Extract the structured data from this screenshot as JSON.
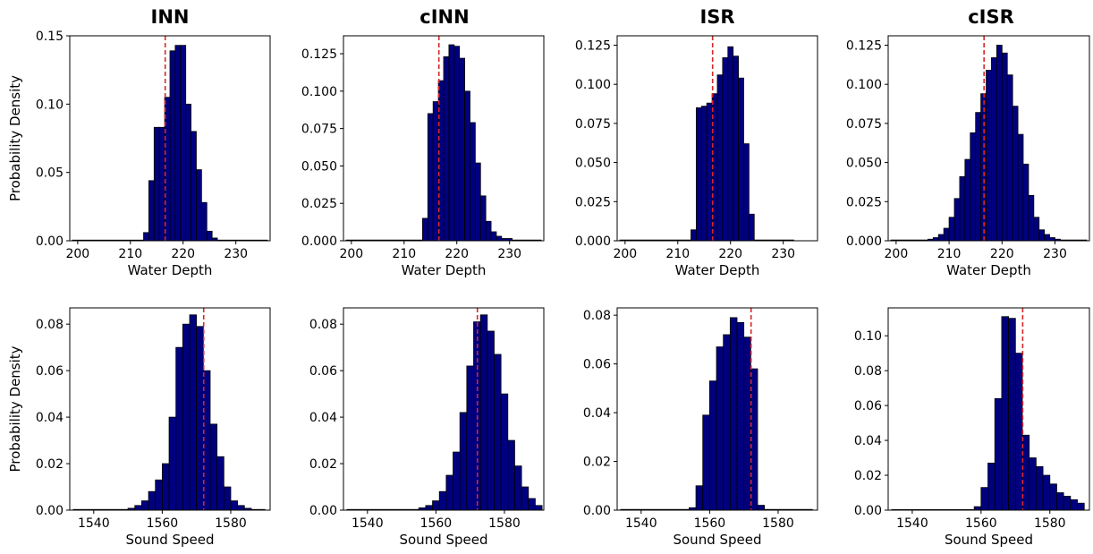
{
  "column_titles": [
    "INN",
    "cINN",
    "ISR",
    "cISR"
  ],
  "styles": {
    "bar_fill": "#00007f",
    "bar_edge": "#000000",
    "reference_line": "#d62728"
  },
  "chart_data": [
    {
      "type": "bar",
      "row": 0,
      "col": 0,
      "xlabel": "Water Depth",
      "ylabel": "Probability Density",
      "xlim": [
        198.5,
        236.5
      ],
      "ylim": [
        0,
        0.15
      ],
      "xticks": [
        200,
        210,
        220,
        230
      ],
      "xtick_labels": [
        "200",
        "210",
        "220",
        "230"
      ],
      "yticks": [
        0,
        0.05,
        0.1,
        0.15
      ],
      "ytick_labels": [
        "0.00",
        "0.05",
        "0.10",
        "0.15"
      ],
      "reference_line": 216.6,
      "bins": [
        {
          "x0": 199.0,
          "x1": 212.5,
          "y": 0.0005
        },
        {
          "x0": 212.5,
          "x1": 213.5,
          "y": 0.006
        },
        {
          "x0": 213.5,
          "x1": 214.5,
          "y": 0.044
        },
        {
          "x0": 214.5,
          "x1": 215.5,
          "y": 0.083
        },
        {
          "x0": 215.5,
          "x1": 216.5,
          "y": 0.083
        },
        {
          "x0": 216.5,
          "x1": 217.5,
          "y": 0.105
        },
        {
          "x0": 217.5,
          "x1": 218.5,
          "y": 0.139
        },
        {
          "x0": 218.5,
          "x1": 219.5,
          "y": 0.143
        },
        {
          "x0": 219.5,
          "x1": 220.5,
          "y": 0.143
        },
        {
          "x0": 220.5,
          "x1": 221.5,
          "y": 0.1
        },
        {
          "x0": 221.5,
          "x1": 222.5,
          "y": 0.08
        },
        {
          "x0": 222.5,
          "x1": 223.5,
          "y": 0.052
        },
        {
          "x0": 223.5,
          "x1": 224.5,
          "y": 0.028
        },
        {
          "x0": 224.5,
          "x1": 225.5,
          "y": 0.007
        },
        {
          "x0": 225.5,
          "x1": 226.5,
          "y": 0.002
        },
        {
          "x0": 226.5,
          "x1": 236.0,
          "y": 0.0005
        }
      ]
    },
    {
      "type": "bar",
      "row": 0,
      "col": 1,
      "xlabel": "Water Depth",
      "ylabel": "",
      "xlim": [
        198.5,
        236.5
      ],
      "ylim": [
        0,
        0.137
      ],
      "xticks": [
        200,
        210,
        220,
        230
      ],
      "xtick_labels": [
        "200",
        "210",
        "220",
        "230"
      ],
      "yticks": [
        0,
        0.025,
        0.05,
        0.075,
        0.1,
        0.125
      ],
      "ytick_labels": [
        "0.000",
        "0.025",
        "0.050",
        "0.075",
        "0.100",
        "0.125"
      ],
      "reference_line": 216.6,
      "bins": [
        {
          "x0": 199.0,
          "x1": 213.5,
          "y": 0.0005
        },
        {
          "x0": 213.5,
          "x1": 214.5,
          "y": 0.015
        },
        {
          "x0": 214.5,
          "x1": 215.5,
          "y": 0.085
        },
        {
          "x0": 215.5,
          "x1": 216.5,
          "y": 0.093
        },
        {
          "x0": 216.5,
          "x1": 217.5,
          "y": 0.107
        },
        {
          "x0": 217.5,
          "x1": 218.5,
          "y": 0.123
        },
        {
          "x0": 218.5,
          "x1": 219.5,
          "y": 0.131
        },
        {
          "x0": 219.5,
          "x1": 220.5,
          "y": 0.13
        },
        {
          "x0": 220.5,
          "x1": 221.5,
          "y": 0.122
        },
        {
          "x0": 221.5,
          "x1": 222.5,
          "y": 0.1
        },
        {
          "x0": 222.5,
          "x1": 223.5,
          "y": 0.079
        },
        {
          "x0": 223.5,
          "x1": 224.5,
          "y": 0.052
        },
        {
          "x0": 224.5,
          "x1": 225.5,
          "y": 0.03
        },
        {
          "x0": 225.5,
          "x1": 226.5,
          "y": 0.013
        },
        {
          "x0": 226.5,
          "x1": 227.5,
          "y": 0.006
        },
        {
          "x0": 227.5,
          "x1": 228.5,
          "y": 0.003
        },
        {
          "x0": 228.5,
          "x1": 230.5,
          "y": 0.0015
        },
        {
          "x0": 230.5,
          "x1": 236.0,
          "y": 0.0005
        }
      ]
    },
    {
      "type": "bar",
      "row": 0,
      "col": 2,
      "xlabel": "Water Depth",
      "ylabel": "",
      "xlim": [
        198.5,
        236.5
      ],
      "ylim": [
        0,
        0.131
      ],
      "xticks": [
        200,
        210,
        220,
        230
      ],
      "xtick_labels": [
        "200",
        "210",
        "220",
        "230"
      ],
      "yticks": [
        0,
        0.025,
        0.05,
        0.075,
        0.1,
        0.125
      ],
      "ytick_labels": [
        "0.000",
        "0.025",
        "0.050",
        "0.075",
        "0.100",
        "0.125"
      ],
      "reference_line": 216.6,
      "bins": [
        {
          "x0": 199.0,
          "x1": 212.5,
          "y": 0.0005
        },
        {
          "x0": 212.5,
          "x1": 213.5,
          "y": 0.007
        },
        {
          "x0": 213.5,
          "x1": 214.5,
          "y": 0.085
        },
        {
          "x0": 214.5,
          "x1": 215.5,
          "y": 0.086
        },
        {
          "x0": 215.5,
          "x1": 216.5,
          "y": 0.088
        },
        {
          "x0": 216.5,
          "x1": 217.5,
          "y": 0.094
        },
        {
          "x0": 217.5,
          "x1": 218.5,
          "y": 0.106
        },
        {
          "x0": 218.5,
          "x1": 219.5,
          "y": 0.117
        },
        {
          "x0": 219.5,
          "x1": 220.5,
          "y": 0.124
        },
        {
          "x0": 220.5,
          "x1": 221.5,
          "y": 0.118
        },
        {
          "x0": 221.5,
          "x1": 222.5,
          "y": 0.104
        },
        {
          "x0": 222.5,
          "x1": 223.5,
          "y": 0.062
        },
        {
          "x0": 223.5,
          "x1": 224.5,
          "y": 0.017
        },
        {
          "x0": 224.5,
          "x1": 232.0,
          "y": 0.0005
        }
      ]
    },
    {
      "type": "bar",
      "row": 0,
      "col": 3,
      "xlabel": "Water Depth",
      "ylabel": "",
      "xlim": [
        198.5,
        236.5
      ],
      "ylim": [
        0,
        0.131
      ],
      "xticks": [
        200,
        210,
        220,
        230
      ],
      "xtick_labels": [
        "200",
        "210",
        "220",
        "230"
      ],
      "yticks": [
        0,
        0.025,
        0.05,
        0.075,
        0.1,
        0.125
      ],
      "ytick_labels": [
        "0.000",
        "0.025",
        "0.050",
        "0.075",
        "0.100",
        "0.125"
      ],
      "reference_line": 216.6,
      "bins": [
        {
          "x0": 199.0,
          "x1": 206.0,
          "y": 0.0005
        },
        {
          "x0": 206.0,
          "x1": 207.0,
          "y": 0.001
        },
        {
          "x0": 207.0,
          "x1": 208.0,
          "y": 0.002
        },
        {
          "x0": 208.0,
          "x1": 209.0,
          "y": 0.004
        },
        {
          "x0": 209.0,
          "x1": 210.0,
          "y": 0.008
        },
        {
          "x0": 210.0,
          "x1": 211.0,
          "y": 0.015
        },
        {
          "x0": 211.0,
          "x1": 212.0,
          "y": 0.027
        },
        {
          "x0": 212.0,
          "x1": 213.0,
          "y": 0.041
        },
        {
          "x0": 213.0,
          "x1": 214.0,
          "y": 0.052
        },
        {
          "x0": 214.0,
          "x1": 215.0,
          "y": 0.069
        },
        {
          "x0": 215.0,
          "x1": 216.0,
          "y": 0.082
        },
        {
          "x0": 216.0,
          "x1": 217.0,
          "y": 0.094
        },
        {
          "x0": 217.0,
          "x1": 218.0,
          "y": 0.109
        },
        {
          "x0": 218.0,
          "x1": 219.0,
          "y": 0.117
        },
        {
          "x0": 219.0,
          "x1": 220.0,
          "y": 0.125
        },
        {
          "x0": 220.0,
          "x1": 221.0,
          "y": 0.12
        },
        {
          "x0": 221.0,
          "x1": 222.0,
          "y": 0.106
        },
        {
          "x0": 222.0,
          "x1": 223.0,
          "y": 0.086
        },
        {
          "x0": 223.0,
          "x1": 224.0,
          "y": 0.068
        },
        {
          "x0": 224.0,
          "x1": 225.0,
          "y": 0.049
        },
        {
          "x0": 225.0,
          "x1": 226.0,
          "y": 0.029
        },
        {
          "x0": 226.0,
          "x1": 227.0,
          "y": 0.015
        },
        {
          "x0": 227.0,
          "x1": 228.0,
          "y": 0.007
        },
        {
          "x0": 228.0,
          "x1": 229.0,
          "y": 0.004
        },
        {
          "x0": 229.0,
          "x1": 230.0,
          "y": 0.002
        },
        {
          "x0": 230.0,
          "x1": 231.0,
          "y": 0.001
        },
        {
          "x0": 231.0,
          "x1": 236.0,
          "y": 0.0005
        }
      ]
    },
    {
      "type": "bar",
      "row": 1,
      "col": 0,
      "xlabel": "Sound Speed",
      "ylabel": "Probability Density",
      "xlim": [
        1533,
        1591.5
      ],
      "ylim": [
        0,
        0.087
      ],
      "xticks": [
        1540,
        1560,
        1580
      ],
      "xtick_labels": [
        "1540",
        "1560",
        "1580"
      ],
      "yticks": [
        0,
        0.02,
        0.04,
        0.06,
        0.08
      ],
      "ytick_labels": [
        "0.00",
        "0.02",
        "0.04",
        "0.06",
        "0.08"
      ],
      "reference_line": 1572.1,
      "bins": [
        {
          "x0": 1534,
          "x1": 1550,
          "y": 0.0003
        },
        {
          "x0": 1550,
          "x1": 1552,
          "y": 0.0008
        },
        {
          "x0": 1552,
          "x1": 1554,
          "y": 0.002
        },
        {
          "x0": 1554,
          "x1": 1556,
          "y": 0.004
        },
        {
          "x0": 1556,
          "x1": 1558,
          "y": 0.008
        },
        {
          "x0": 1558,
          "x1": 1560,
          "y": 0.013
        },
        {
          "x0": 1560,
          "x1": 1562,
          "y": 0.02
        },
        {
          "x0": 1562,
          "x1": 1564,
          "y": 0.04
        },
        {
          "x0": 1564,
          "x1": 1566,
          "y": 0.07
        },
        {
          "x0": 1566,
          "x1": 1568,
          "y": 0.08
        },
        {
          "x0": 1568,
          "x1": 1570,
          "y": 0.084
        },
        {
          "x0": 1570,
          "x1": 1572,
          "y": 0.079
        },
        {
          "x0": 1572,
          "x1": 1574,
          "y": 0.06
        },
        {
          "x0": 1574,
          "x1": 1576,
          "y": 0.037
        },
        {
          "x0": 1576,
          "x1": 1578,
          "y": 0.023
        },
        {
          "x0": 1578,
          "x1": 1580,
          "y": 0.01
        },
        {
          "x0": 1580,
          "x1": 1582,
          "y": 0.004
        },
        {
          "x0": 1582,
          "x1": 1584,
          "y": 0.002
        },
        {
          "x0": 1584,
          "x1": 1586,
          "y": 0.0008
        },
        {
          "x0": 1586,
          "x1": 1590,
          "y": 0.0003
        }
      ]
    },
    {
      "type": "bar",
      "row": 1,
      "col": 1,
      "xlabel": "Sound Speed",
      "ylabel": "",
      "xlim": [
        1533,
        1591.5
      ],
      "ylim": [
        0,
        0.087
      ],
      "xticks": [
        1540,
        1560,
        1580
      ],
      "xtick_labels": [
        "1540",
        "1560",
        "1580"
      ],
      "yticks": [
        0,
        0.02,
        0.04,
        0.06,
        0.08
      ],
      "ytick_labels": [
        "0.00",
        "0.02",
        "0.04",
        "0.06",
        "0.08"
      ],
      "reference_line": 1572.1,
      "bins": [
        {
          "x0": 1534,
          "x1": 1555,
          "y": 0.0003
        },
        {
          "x0": 1555,
          "x1": 1557,
          "y": 0.001
        },
        {
          "x0": 1557,
          "x1": 1559,
          "y": 0.002
        },
        {
          "x0": 1559,
          "x1": 1561,
          "y": 0.004
        },
        {
          "x0": 1561,
          "x1": 1563,
          "y": 0.008
        },
        {
          "x0": 1563,
          "x1": 1565,
          "y": 0.015
        },
        {
          "x0": 1565,
          "x1": 1567,
          "y": 0.025
        },
        {
          "x0": 1567,
          "x1": 1569,
          "y": 0.042
        },
        {
          "x0": 1569,
          "x1": 1571,
          "y": 0.062
        },
        {
          "x0": 1571,
          "x1": 1573,
          "y": 0.081
        },
        {
          "x0": 1573,
          "x1": 1575,
          "y": 0.084
        },
        {
          "x0": 1575,
          "x1": 1577,
          "y": 0.077
        },
        {
          "x0": 1577,
          "x1": 1579,
          "y": 0.067
        },
        {
          "x0": 1579,
          "x1": 1581,
          "y": 0.05
        },
        {
          "x0": 1581,
          "x1": 1583,
          "y": 0.03
        },
        {
          "x0": 1583,
          "x1": 1585,
          "y": 0.019
        },
        {
          "x0": 1585,
          "x1": 1587,
          "y": 0.01
        },
        {
          "x0": 1587,
          "x1": 1589,
          "y": 0.005
        },
        {
          "x0": 1589,
          "x1": 1591,
          "y": 0.002
        }
      ]
    },
    {
      "type": "bar",
      "row": 1,
      "col": 2,
      "xlabel": "Sound Speed",
      "ylabel": "",
      "xlim": [
        1533,
        1591.5
      ],
      "ylim": [
        0,
        0.083
      ],
      "xticks": [
        1540,
        1560,
        1580
      ],
      "xtick_labels": [
        "1540",
        "1560",
        "1580"
      ],
      "yticks": [
        0,
        0.02,
        0.04,
        0.06,
        0.08
      ],
      "ytick_labels": [
        "0.00",
        "0.02",
        "0.04",
        "0.06",
        "0.08"
      ],
      "reference_line": 1572.1,
      "bins": [
        {
          "x0": 1534,
          "x1": 1554,
          "y": 0.0003
        },
        {
          "x0": 1554,
          "x1": 1556,
          "y": 0.001
        },
        {
          "x0": 1556,
          "x1": 1558,
          "y": 0.01
        },
        {
          "x0": 1558,
          "x1": 1560,
          "y": 0.039
        },
        {
          "x0": 1560,
          "x1": 1562,
          "y": 0.053
        },
        {
          "x0": 1562,
          "x1": 1564,
          "y": 0.067
        },
        {
          "x0": 1564,
          "x1": 1566,
          "y": 0.072
        },
        {
          "x0": 1566,
          "x1": 1568,
          "y": 0.079
        },
        {
          "x0": 1568,
          "x1": 1570,
          "y": 0.077
        },
        {
          "x0": 1570,
          "x1": 1572,
          "y": 0.071
        },
        {
          "x0": 1572,
          "x1": 1574,
          "y": 0.058
        },
        {
          "x0": 1574,
          "x1": 1576,
          "y": 0.002
        },
        {
          "x0": 1576,
          "x1": 1590,
          "y": 0.0003
        }
      ]
    },
    {
      "type": "bar",
      "row": 1,
      "col": 3,
      "xlabel": "Sound Speed",
      "ylabel": "",
      "xlim": [
        1533,
        1591.5
      ],
      "ylim": [
        0,
        0.116
      ],
      "xticks": [
        1540,
        1560,
        1580
      ],
      "xtick_labels": [
        "1540",
        "1560",
        "1580"
      ],
      "yticks": [
        0,
        0.02,
        0.04,
        0.06,
        0.08,
        0.1
      ],
      "ytick_labels": [
        "0.00",
        "0.02",
        "0.04",
        "0.06",
        "0.08",
        "0.10"
      ],
      "reference_line": 1572.1,
      "bins": [
        {
          "x0": 1534,
          "x1": 1558,
          "y": 0.0003
        },
        {
          "x0": 1558,
          "x1": 1560,
          "y": 0.002
        },
        {
          "x0": 1560,
          "x1": 1562,
          "y": 0.013
        },
        {
          "x0": 1562,
          "x1": 1564,
          "y": 0.027
        },
        {
          "x0": 1564,
          "x1": 1566,
          "y": 0.064
        },
        {
          "x0": 1566,
          "x1": 1568,
          "y": 0.111
        },
        {
          "x0": 1568,
          "x1": 1570,
          "y": 0.11
        },
        {
          "x0": 1570,
          "x1": 1572,
          "y": 0.09
        },
        {
          "x0": 1572,
          "x1": 1574,
          "y": 0.043
        },
        {
          "x0": 1574,
          "x1": 1576,
          "y": 0.03
        },
        {
          "x0": 1576,
          "x1": 1578,
          "y": 0.025
        },
        {
          "x0": 1578,
          "x1": 1580,
          "y": 0.02
        },
        {
          "x0": 1580,
          "x1": 1582,
          "y": 0.015
        },
        {
          "x0": 1582,
          "x1": 1584,
          "y": 0.01
        },
        {
          "x0": 1584,
          "x1": 1586,
          "y": 0.008
        },
        {
          "x0": 1586,
          "x1": 1588,
          "y": 0.006
        },
        {
          "x0": 1588,
          "x1": 1590,
          "y": 0.004
        }
      ]
    }
  ]
}
